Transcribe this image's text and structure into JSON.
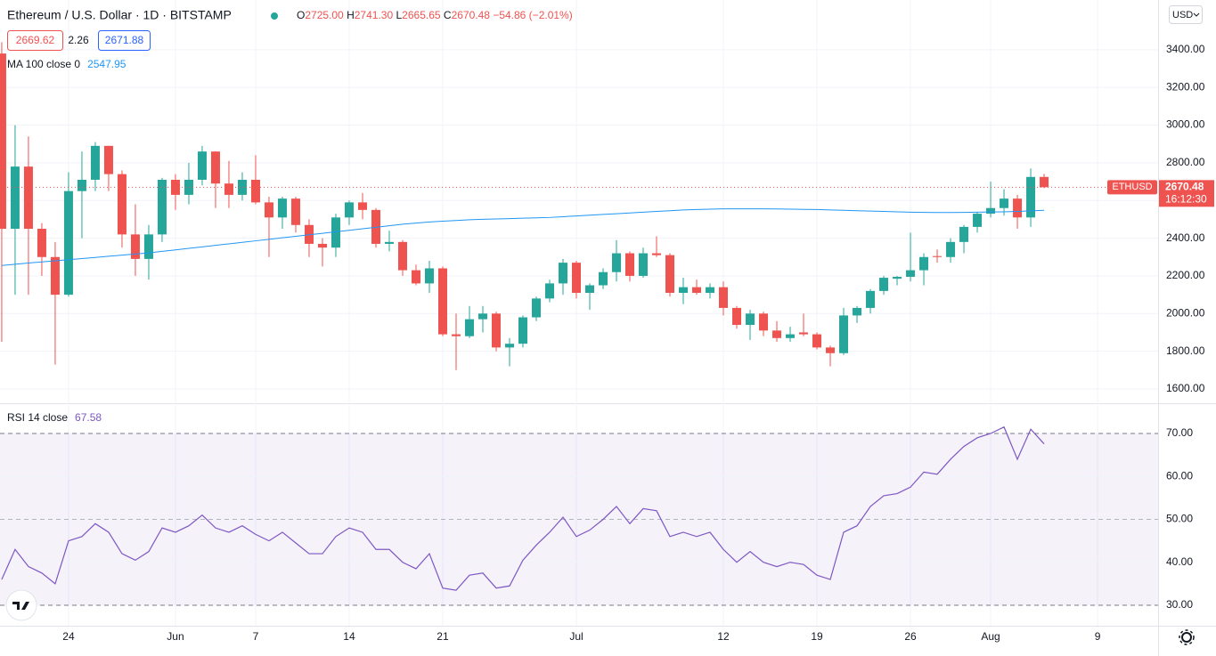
{
  "header": {
    "symbol": "Ethereum / U.S. Dollar · 1D · BITSTAMP",
    "quote": [
      {
        "k": "O",
        "v": "2725.00"
      },
      {
        "k": "H",
        "v": "2741.30"
      },
      {
        "k": "L",
        "v": "2665.65"
      },
      {
        "k": "C",
        "v": "2670.48"
      }
    ],
    "change": "−54.86 (−2.01%)",
    "bid": "2669.62",
    "spread": "2.26",
    "ask": "2671.88",
    "currency": "USD",
    "countdown": "16:12:30"
  },
  "chart_data": [
    {
      "type": "candlestick",
      "title": "Ethereum / U.S. Dollar · 1D · BITSTAMP",
      "xlim": [
        -0.13,
        86.53
      ],
      "ylim": [
        1529,
        3664
      ],
      "xticks": [
        {
          "value": 5,
          "label": "24"
        },
        {
          "value": 13,
          "label": "Jun"
        },
        {
          "value": 19,
          "label": "7"
        },
        {
          "value": 26,
          "label": "14"
        },
        {
          "value": 33,
          "label": "21"
        },
        {
          "value": 43,
          "label": "Jul"
        },
        {
          "value": 54,
          "label": "12"
        },
        {
          "value": 61,
          "label": "19"
        },
        {
          "value": 68,
          "label": "26"
        },
        {
          "value": 74,
          "label": "Aug"
        },
        {
          "value": 82,
          "label": "9"
        }
      ],
      "yticks": [
        {
          "value": 1600,
          "label": "1600.00"
        },
        {
          "value": 1800,
          "label": "1800.00"
        },
        {
          "value": 2000,
          "label": "2000.00"
        },
        {
          "value": 2200,
          "label": "2200.00"
        },
        {
          "value": 2400,
          "label": "2400.00"
        },
        {
          "value": 2600,
          "label": "2600.00"
        },
        {
          "value": 2800,
          "label": "2800.00"
        },
        {
          "value": 3000,
          "label": "3000.00"
        },
        {
          "value": 3200,
          "label": "3200.00"
        },
        {
          "value": 3400,
          "label": "3400.00"
        }
      ],
      "grid": true,
      "up_color": "#26a69a",
      "down_color": "#ef5350",
      "series": [
        {
          "name": "ETHUSD",
          "open": [
            3380,
            2450,
            2780,
            2450,
            2300,
            2100,
            2650,
            2710,
            2890,
            2740,
            2420,
            2290,
            2420,
            2710,
            2630,
            2710,
            2860,
            2690,
            2630,
            2710,
            2590,
            2510,
            2610,
            2470,
            2370,
            2350,
            2510,
            2590,
            2550,
            2370,
            2380,
            2230,
            2160,
            2240,
            1890,
            1880,
            1970,
            2000,
            1820,
            1840,
            1980,
            2080,
            2160,
            2270,
            2110,
            2150,
            2220,
            2320,
            2200,
            2320,
            2310,
            2110,
            2140,
            2110,
            2140,
            2030,
            1940,
            2000,
            1910,
            1870,
            1900,
            1890,
            1820,
            1790,
            1990,
            2030,
            2120,
            2185,
            2195,
            2230,
            2305,
            2300,
            2380,
            2460,
            2530,
            2560,
            2610,
            2510,
            2725
          ],
          "high": [
            3440,
            3000,
            2940,
            2480,
            2380,
            2750,
            2860,
            2910,
            2890,
            2760,
            2580,
            2470,
            2720,
            2740,
            2800,
            2890,
            2860,
            2810,
            2750,
            2840,
            2620,
            2620,
            2620,
            2500,
            2400,
            2530,
            2600,
            2640,
            2560,
            2440,
            2390,
            2260,
            2280,
            2250,
            2000,
            2040,
            2040,
            2010,
            1870,
            1990,
            2090,
            2180,
            2290,
            2280,
            2160,
            2240,
            2390,
            2330,
            2350,
            2410,
            2320,
            2190,
            2180,
            2160,
            2170,
            2040,
            2020,
            2010,
            1960,
            1930,
            2000,
            1900,
            1830,
            2030,
            2040,
            2130,
            2200,
            2200,
            2430,
            2320,
            2340,
            2400,
            2470,
            2540,
            2700,
            2660,
            2630,
            2770,
            2741.3
          ],
          "low": [
            1850,
            2100,
            2100,
            2200,
            1730,
            2090,
            2400,
            2650,
            2650,
            2350,
            2200,
            2180,
            2380,
            2550,
            2580,
            2680,
            2560,
            2560,
            2600,
            2580,
            2300,
            2450,
            2430,
            2300,
            2250,
            2300,
            2470,
            2500,
            2350,
            2330,
            2200,
            2150,
            2110,
            1880,
            1700,
            1870,
            1900,
            1800,
            1720,
            1820,
            1960,
            2060,
            2100,
            2080,
            2020,
            2130,
            2170,
            2170,
            2190,
            2300,
            2090,
            2050,
            2100,
            2080,
            1990,
            1920,
            1860,
            1880,
            1850,
            1850,
            1880,
            1810,
            1720,
            1780,
            1950,
            2000,
            2100,
            2150,
            2170,
            2150,
            2270,
            2270,
            2320,
            2430,
            2510,
            2520,
            2450,
            2460,
            2665.65
          ],
          "close": [
            2450,
            2780,
            2450,
            2300,
            2100,
            2650,
            2710,
            2890,
            2740,
            2420,
            2290,
            2420,
            2710,
            2630,
            2710,
            2860,
            2690,
            2630,
            2710,
            2590,
            2510,
            2610,
            2470,
            2370,
            2350,
            2510,
            2590,
            2550,
            2370,
            2380,
            2230,
            2160,
            2240,
            1890,
            1880,
            1970,
            2000,
            1820,
            1840,
            1980,
            2080,
            2160,
            2270,
            2110,
            2150,
            2220,
            2320,
            2200,
            2320,
            2310,
            2110,
            2140,
            2110,
            2140,
            2030,
            1940,
            2000,
            1910,
            1870,
            1890,
            1890,
            1820,
            1790,
            1990,
            2030,
            2120,
            2190,
            2195,
            2230,
            2300,
            2300,
            2380,
            2460,
            2530,
            2560,
            2610,
            2510,
            2725,
            2670.48
          ]
        },
        {
          "name": "MA 100 close 0",
          "color": "#2196f3",
          "values": [
            2255,
            2262,
            2268,
            2274,
            2280,
            2286,
            2292,
            2298,
            2304,
            2310,
            2316,
            2322,
            2330,
            2338,
            2346,
            2354,
            2362,
            2370,
            2378,
            2386,
            2394,
            2402,
            2410,
            2418,
            2426,
            2434,
            2442,
            2450,
            2458,
            2466,
            2474,
            2480,
            2486,
            2490,
            2494,
            2498,
            2500,
            2502,
            2504,
            2506,
            2508,
            2510,
            2514,
            2518,
            2522,
            2526,
            2530,
            2534,
            2538,
            2542,
            2546,
            2550,
            2552,
            2554,
            2556,
            2556,
            2556,
            2556,
            2555,
            2554,
            2553,
            2552,
            2550,
            2548,
            2546,
            2544,
            2542,
            2540,
            2538,
            2537,
            2536,
            2536,
            2537,
            2538,
            2539,
            2540,
            2542,
            2545,
            2547.95
          ]
        }
      ]
    },
    {
      "type": "line",
      "ylim": [
        25.23,
        76.63
      ],
      "yticks": [
        {
          "value": 30,
          "label": "30.00"
        },
        {
          "value": 40,
          "label": "40.00"
        },
        {
          "value": 50,
          "label": "50.00"
        },
        {
          "value": 60,
          "label": "60.00"
        },
        {
          "value": 70,
          "label": "70.00"
        }
      ],
      "band": [
        30,
        70
      ],
      "midline": 50,
      "band_color": "#7e57c2",
      "series": [
        {
          "name": "RSI 14 close",
          "color": "#7e57c2",
          "values": [
            36,
            43,
            39,
            37.5,
            35,
            45,
            46,
            49,
            47,
            42,
            40.5,
            42.5,
            48,
            47,
            48.5,
            51,
            48,
            47,
            48.5,
            46.5,
            45,
            47,
            44.5,
            42,
            42,
            46,
            48,
            47,
            43,
            43,
            40,
            38.5,
            42,
            34,
            33.5,
            37,
            37.5,
            34,
            34.5,
            40.5,
            44,
            47,
            50.5,
            46,
            47.5,
            50,
            53,
            49,
            52.5,
            52,
            46,
            47,
            46,
            47,
            43,
            40,
            42.5,
            40,
            39,
            40,
            39.5,
            37,
            36,
            47,
            48.5,
            53,
            55.5,
            56,
            57.5,
            61,
            60.5,
            64,
            67,
            69,
            70,
            71.5,
            64,
            71,
            67.58
          ]
        }
      ]
    }
  ]
}
